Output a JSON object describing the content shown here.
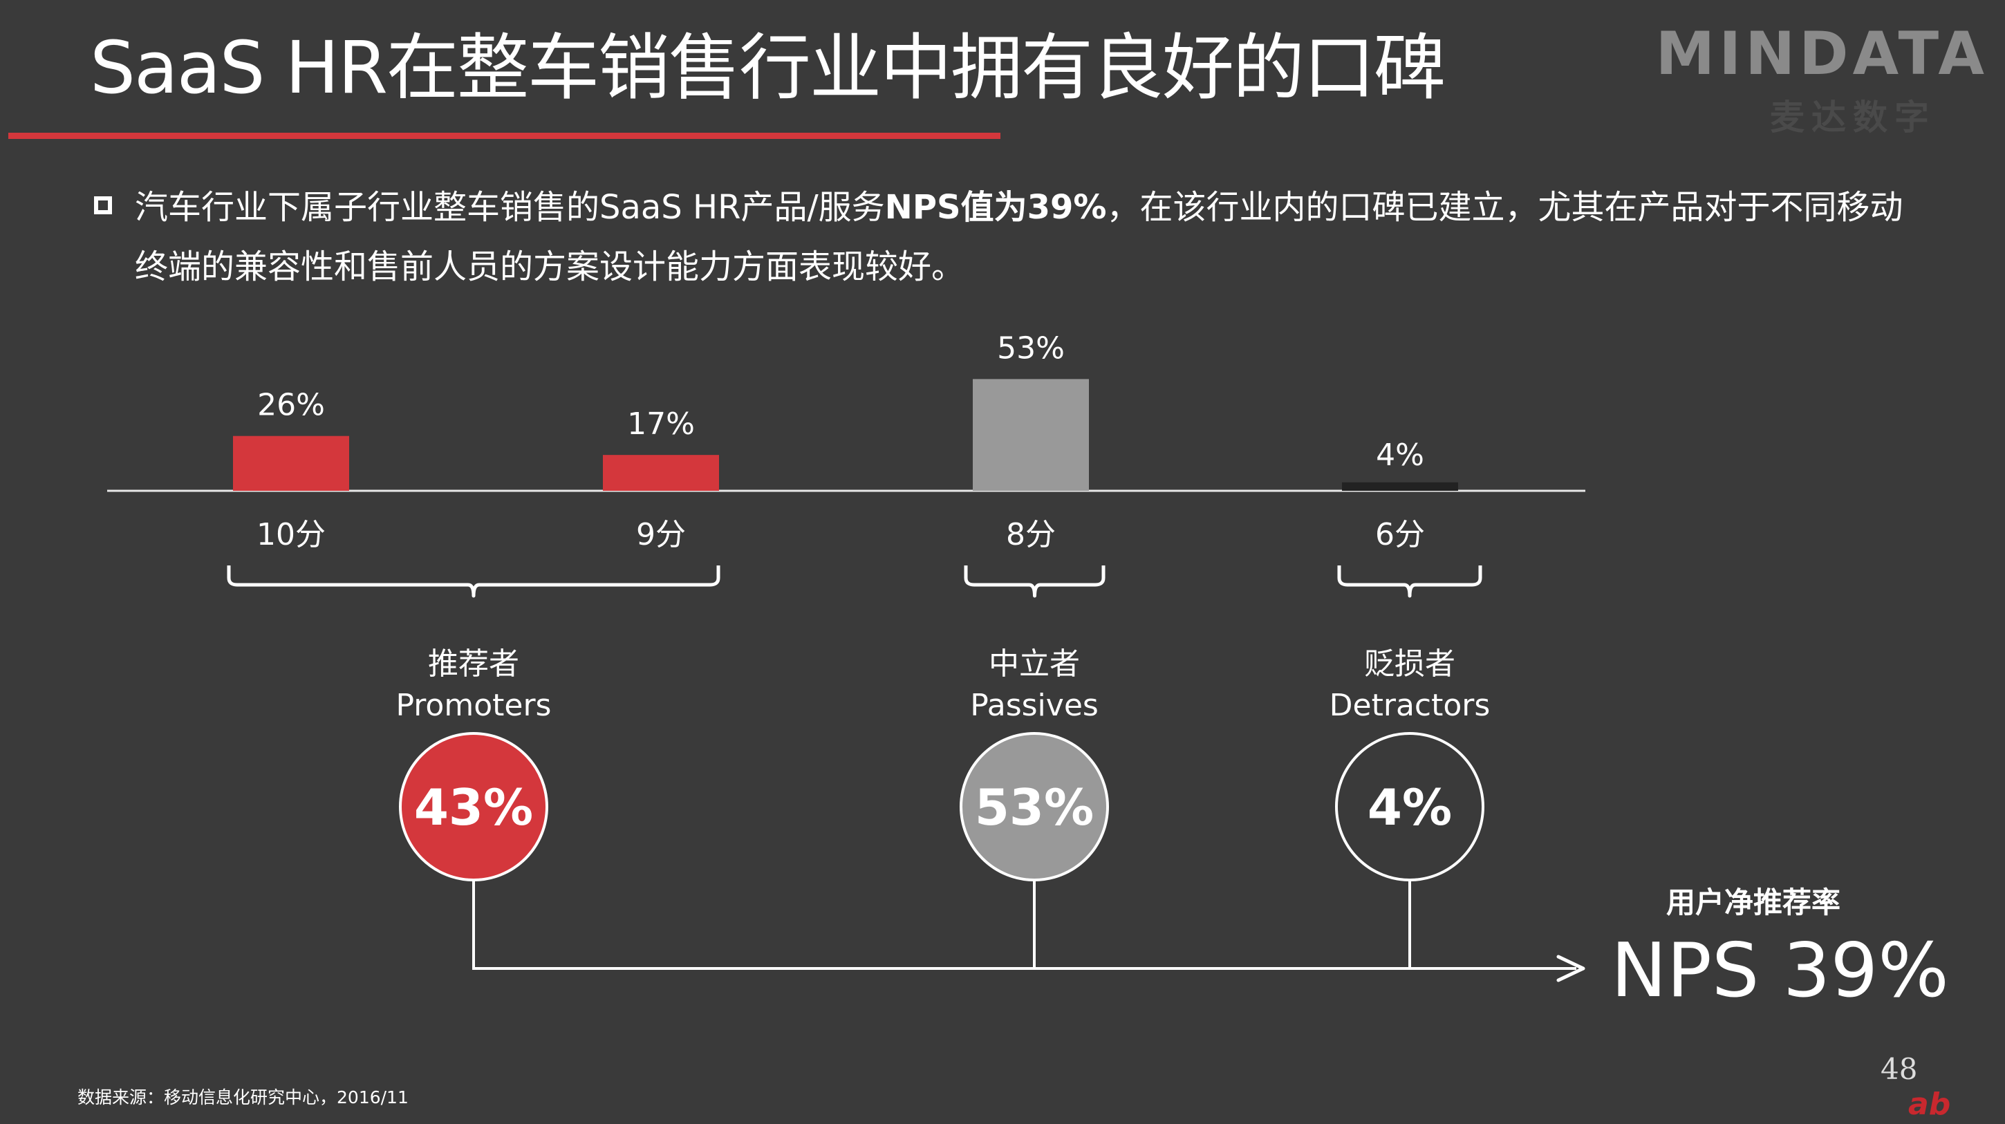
{
  "header": {
    "title": "SaaS HR在整车销售行业中拥有良好的口碑",
    "logo": "MINDATA",
    "logo_subtitle": "麦达数字"
  },
  "bullet": {
    "line1_pre": "汽车行业下属子行业整车销售的SaaS HR产品/服务",
    "line1_strong": "NPS值为39%",
    "line1_post": "，在该行业内的口碑已建立，尤其在产品对于不同移动",
    "line2": "终端的兼容性和售前人员的方案设计能力方面表现较好。"
  },
  "chart_data": {
    "type": "bar",
    "categories": [
      "10分",
      "9分",
      "8分",
      "6分"
    ],
    "values": [
      26,
      17,
      53,
      4
    ],
    "value_labels": [
      "26%",
      "17%",
      "53%",
      "4%"
    ],
    "colors": [
      "#d4373c",
      "#d4373c",
      "#999999",
      "#222222"
    ],
    "ylim": [
      0,
      60
    ]
  },
  "groups": [
    {
      "zh": "推荐者",
      "en": "Promoters",
      "value": "43%",
      "fill": "#d4373c"
    },
    {
      "zh": "中立者",
      "en": "Passives",
      "value": "53%",
      "fill": "#999999"
    },
    {
      "zh": "贬损者",
      "en": "Detractors",
      "value": "4%",
      "fill": "#3a3a3a"
    }
  ],
  "nps": {
    "caption": "用户净推荐率",
    "value": "NPS  39%"
  },
  "footer": {
    "source": "数据来源：移动信息化研究中心，2016/11",
    "page_number": "48"
  }
}
